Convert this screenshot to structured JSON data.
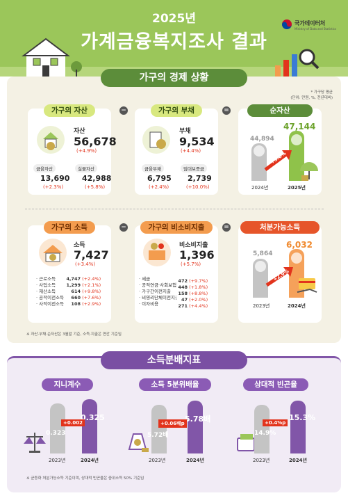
{
  "header": {
    "year": "2025년",
    "title": "가계금융복지조사 결과",
    "agency": "국가데이터처",
    "agency_en": "Ministry of Data and Statistics"
  },
  "section1": {
    "title": "가구의 경제 상황",
    "note1": "* 가구당 평균",
    "note2": "(단위: 만원, %, 전년대비)",
    "asset": {
      "caption": "가구의 자산",
      "label": "자산",
      "value": "56,678",
      "change": "(+4.9%)",
      "sub": [
        {
          "label": "금융자산",
          "value": "13,690",
          "change": "(+2.3%)"
        },
        {
          "label": "실물자산",
          "value": "42,988",
          "change": "(+5.8%)"
        }
      ]
    },
    "debt": {
      "caption": "가구의 부채",
      "label": "부채",
      "value": "9,534",
      "change": "(+4.4%)",
      "sub": [
        {
          "label": "금융부채",
          "value": "6,795",
          "change": "(+2.4%)"
        },
        {
          "label": "임대보증금",
          "value": "2,739",
          "change": "(+10.0%)"
        }
      ]
    },
    "net": {
      "caption": "순자산",
      "prev_value": "44,894",
      "curr_value": "47,144",
      "growth": "+5.0%",
      "prev_year": "2024년",
      "curr_year": "2025년"
    },
    "income": {
      "caption": "가구의 소득",
      "label": "소득",
      "value": "7,427",
      "change": "(+3.4%)",
      "rows": [
        {
          "label": "근로소득",
          "value": "4,747",
          "change": "(+2.4%)"
        },
        {
          "label": "사업소득",
          "value": "1,299",
          "change": "(+2.1%)"
        },
        {
          "label": "재산소득",
          "value": "614",
          "change": "(+9.8%)"
        },
        {
          "label": "공적이전소득",
          "value": "660",
          "change": "(+7.6%)"
        },
        {
          "label": "사적이전소득",
          "value": "108",
          "change": "(+2.9%)"
        }
      ]
    },
    "nonconsump": {
      "caption": "가구의 비소비지출",
      "label": "비소비지출",
      "value": "1,396",
      "change": "(+5.7%)",
      "rows": [
        {
          "label": "세금",
          "value": "472",
          "change": "(+9.7%)"
        },
        {
          "label": "공적연금·사회보험료",
          "value": "448",
          "change": "(+1.8%)"
        },
        {
          "label": "가구간이전지출",
          "value": "158",
          "change": "(+8.8%)"
        },
        {
          "label": "비영리단체이전지출",
          "value": "47",
          "change": "(+2.0%)"
        },
        {
          "label": "이자비용",
          "value": "271",
          "change": "(+4.4%)"
        }
      ]
    },
    "disposable": {
      "caption": "처분가능소득",
      "prev_value": "5,864",
      "curr_value": "6,032",
      "growth": "+2.9%",
      "prev_year": "2023년",
      "curr_year": "2024년"
    },
    "footnote": "※ 자산·부채·순자산은 3월말 기준, 소득·지출은 연간 기준임"
  },
  "section2": {
    "title": "소득분배지표",
    "gini": {
      "caption": "지니계수",
      "prev_value": "0.323",
      "curr_value": "0.325",
      "change": "+0.002",
      "prev_year": "2023년",
      "curr_year": "2024년"
    },
    "quintile": {
      "caption": "소득 5분위배율",
      "prev_value": "5.72배",
      "curr_value": "5.78배",
      "change": "+0.06배p",
      "prev_year": "2023년",
      "curr_year": "2024년"
    },
    "poverty": {
      "caption": "상대적 빈곤율",
      "prev_value": "14.9%",
      "curr_value": "15.3%",
      "change": "+0.4%p",
      "prev_year": "2023년",
      "curr_year": "2024년"
    },
    "footnote": "※ 균등화 처분가능소득 기준이며, 상대적 빈곤율은 중위소득 50% 기준임"
  },
  "colors": {
    "green": "#5c8d3a",
    "lightgreen": "#9bc65a",
    "orange": "#f39c4e",
    "red": "#e2331c",
    "purple": "#8156a8",
    "gray": "#c4c4c4"
  }
}
